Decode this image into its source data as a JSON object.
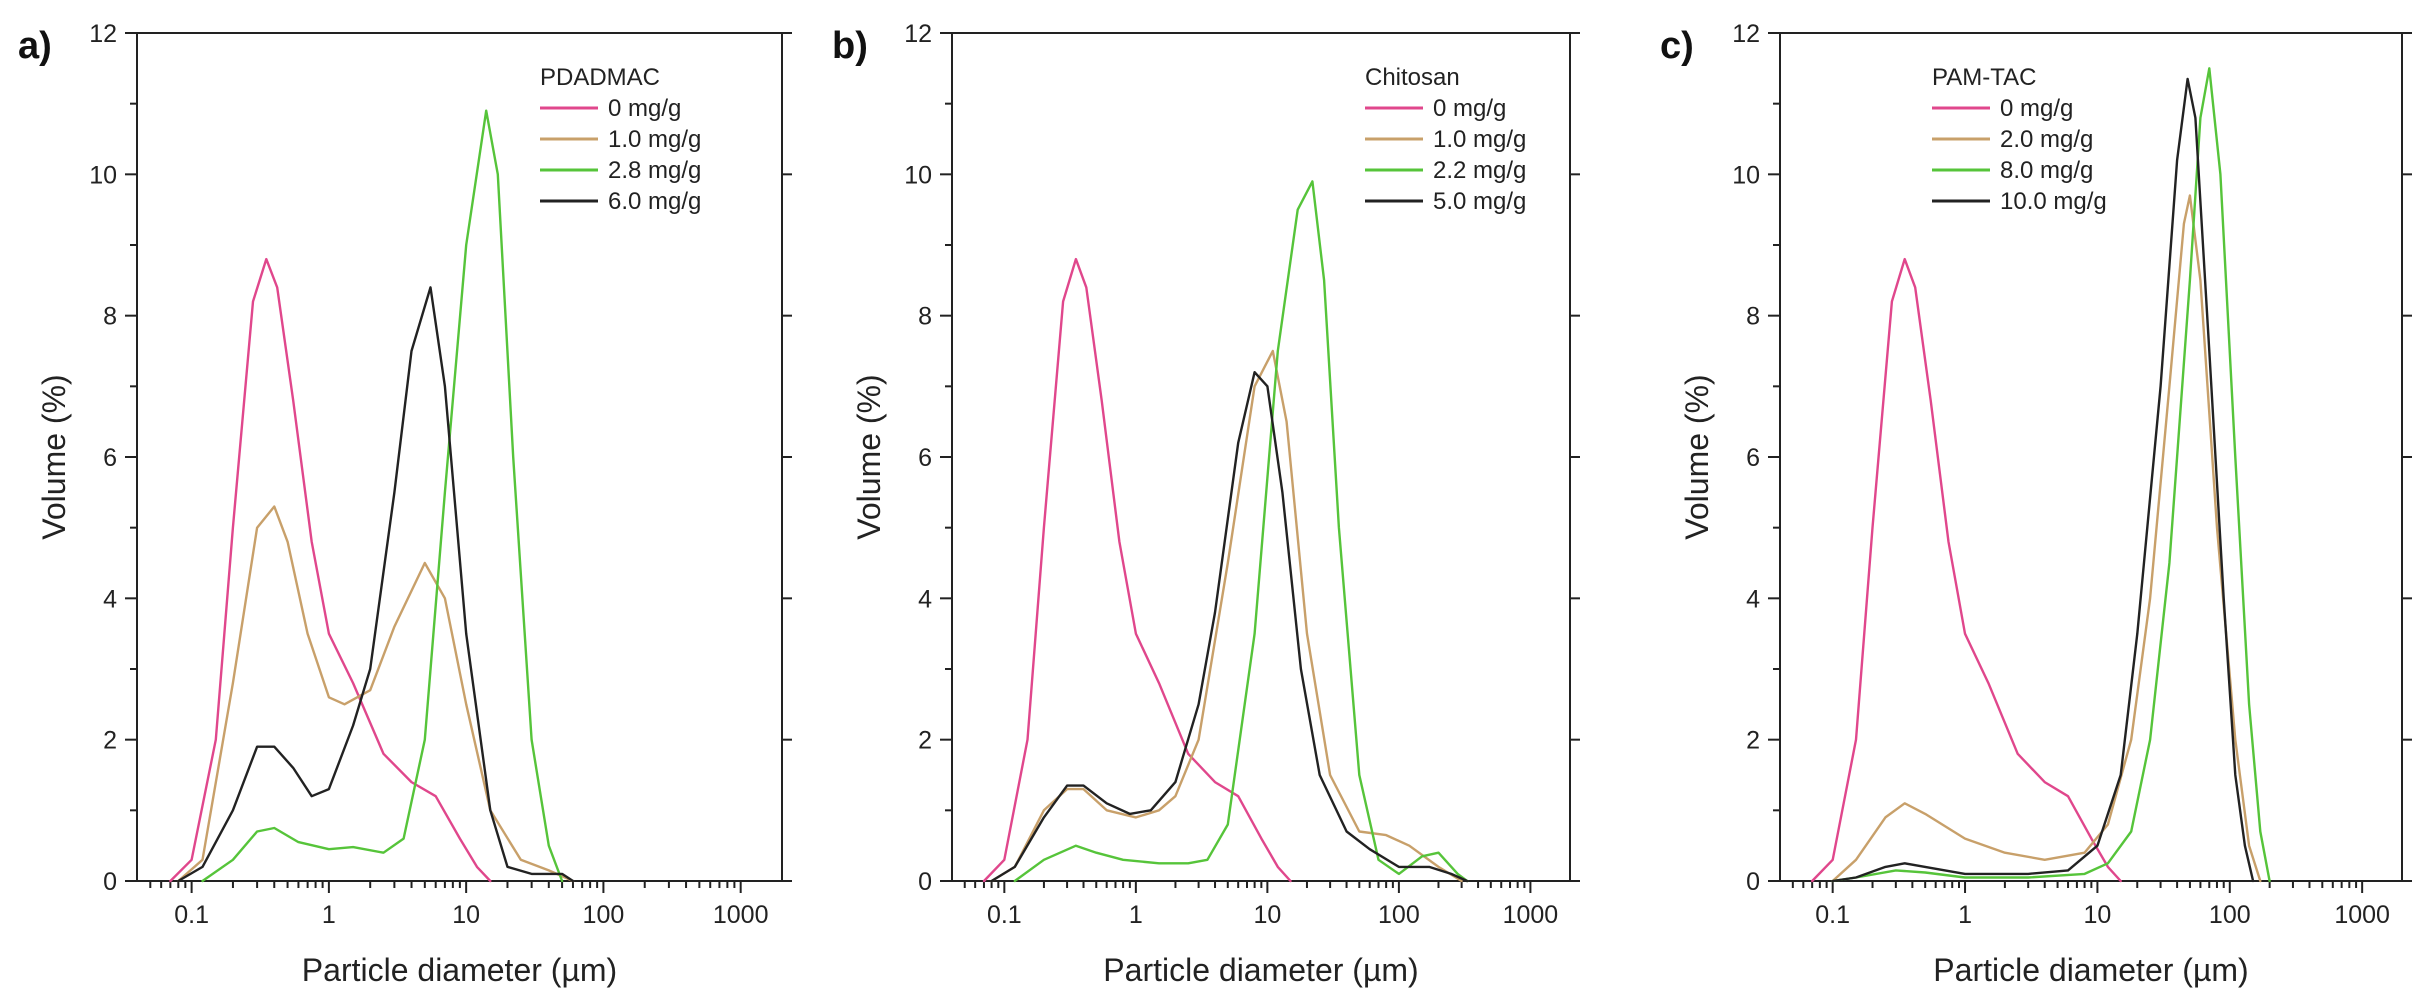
{
  "chart_data": [
    {
      "type": "line",
      "panel_label": "a)",
      "xlabel": "Particle diameter (µm)",
      "ylabel": "Volume (%)",
      "x_scale": "log",
      "xlim": [
        0.04,
        2000
      ],
      "ylim": [
        0,
        12
      ],
      "x_ticks": [
        0.1,
        1,
        10,
        100,
        1000
      ],
      "x_tick_labels": [
        "0.1",
        "1",
        "10",
        "100",
        "1000"
      ],
      "y_ticks": [
        0,
        2,
        4,
        6,
        8,
        10,
        12
      ],
      "legend_title": "PDADMAC",
      "legend_position": "top-right",
      "series": [
        {
          "name": "0 mg/g",
          "color": "#e0478c",
          "points": [
            [
              0.07,
              0
            ],
            [
              0.1,
              0.3
            ],
            [
              0.15,
              2.0
            ],
            [
              0.2,
              5.0
            ],
            [
              0.28,
              8.2
            ],
            [
              0.35,
              8.8
            ],
            [
              0.42,
              8.4
            ],
            [
              0.55,
              6.8
            ],
            [
              0.75,
              4.8
            ],
            [
              1,
              3.5
            ],
            [
              1.5,
              2.8
            ],
            [
              2.5,
              1.8
            ],
            [
              4,
              1.4
            ],
            [
              6,
              1.2
            ],
            [
              9,
              0.6
            ],
            [
              12,
              0.2
            ],
            [
              15,
              0
            ]
          ]
        },
        {
          "name": "1.0 mg/g",
          "color": "#c8a06a",
          "points": [
            [
              0.08,
              0
            ],
            [
              0.12,
              0.3
            ],
            [
              0.2,
              2.8
            ],
            [
              0.3,
              5.0
            ],
            [
              0.4,
              5.3
            ],
            [
              0.5,
              4.8
            ],
            [
              0.7,
              3.5
            ],
            [
              1,
              2.6
            ],
            [
              1.3,
              2.5
            ],
            [
              2,
              2.7
            ],
            [
              3,
              3.6
            ],
            [
              5,
              4.5
            ],
            [
              7,
              4.0
            ],
            [
              10,
              2.5
            ],
            [
              15,
              1.0
            ],
            [
              25,
              0.3
            ],
            [
              40,
              0.15
            ],
            [
              60,
              0
            ]
          ]
        },
        {
          "name": "2.8 mg/g",
          "color": "#56c43a",
          "points": [
            [
              0.12,
              0
            ],
            [
              0.2,
              0.3
            ],
            [
              0.3,
              0.7
            ],
            [
              0.4,
              0.75
            ],
            [
              0.6,
              0.55
            ],
            [
              1,
              0.45
            ],
            [
              1.5,
              0.48
            ],
            [
              2.5,
              0.4
            ],
            [
              3.5,
              0.6
            ],
            [
              5,
              2.0
            ],
            [
              7,
              5.5
            ],
            [
              10,
              9.0
            ],
            [
              14,
              10.9
            ],
            [
              17,
              10.0
            ],
            [
              22,
              6.0
            ],
            [
              30,
              2.0
            ],
            [
              40,
              0.5
            ],
            [
              50,
              0
            ]
          ]
        },
        {
          "name": "6.0 mg/g",
          "color": "#222222",
          "points": [
            [
              0.08,
              0
            ],
            [
              0.12,
              0.2
            ],
            [
              0.2,
              1.0
            ],
            [
              0.3,
              1.9
            ],
            [
              0.4,
              1.9
            ],
            [
              0.55,
              1.6
            ],
            [
              0.75,
              1.2
            ],
            [
              1,
              1.3
            ],
            [
              1.5,
              2.2
            ],
            [
              2,
              3.0
            ],
            [
              3,
              5.5
            ],
            [
              4,
              7.5
            ],
            [
              5.5,
              8.4
            ],
            [
              7,
              7.0
            ],
            [
              10,
              3.5
            ],
            [
              15,
              1.0
            ],
            [
              20,
              0.2
            ],
            [
              30,
              0.1
            ],
            [
              50,
              0.1
            ],
            [
              60,
              0
            ]
          ]
        }
      ]
    },
    {
      "type": "line",
      "panel_label": "b)",
      "xlabel": "Particle diameter (µm)",
      "ylabel": "Volume (%)",
      "x_scale": "log",
      "xlim": [
        0.04,
        2000
      ],
      "ylim": [
        0,
        12
      ],
      "x_ticks": [
        0.1,
        1,
        10,
        100,
        1000
      ],
      "x_tick_labels": [
        "0.1",
        "1",
        "10",
        "100",
        "1000"
      ],
      "y_ticks": [
        0,
        2,
        4,
        6,
        8,
        10,
        12
      ],
      "legend_title": "Chitosan",
      "legend_position": "top-right",
      "series": [
        {
          "name": "0 mg/g",
          "color": "#e0478c",
          "points": [
            [
              0.07,
              0
            ],
            [
              0.1,
              0.3
            ],
            [
              0.15,
              2.0
            ],
            [
              0.2,
              5.0
            ],
            [
              0.28,
              8.2
            ],
            [
              0.35,
              8.8
            ],
            [
              0.42,
              8.4
            ],
            [
              0.55,
              6.8
            ],
            [
              0.75,
              4.8
            ],
            [
              1,
              3.5
            ],
            [
              1.5,
              2.8
            ],
            [
              2.5,
              1.8
            ],
            [
              4,
              1.4
            ],
            [
              6,
              1.2
            ],
            [
              9,
              0.6
            ],
            [
              12,
              0.2
            ],
            [
              15,
              0
            ]
          ]
        },
        {
          "name": "1.0 mg/g",
          "color": "#c8a06a",
          "points": [
            [
              0.08,
              0
            ],
            [
              0.12,
              0.2
            ],
            [
              0.2,
              1.0
            ],
            [
              0.3,
              1.3
            ],
            [
              0.4,
              1.3
            ],
            [
              0.6,
              1.0
            ],
            [
              1,
              0.9
            ],
            [
              1.5,
              1.0
            ],
            [
              2,
              1.2
            ],
            [
              3,
              2.0
            ],
            [
              5,
              4.5
            ],
            [
              8,
              7.0
            ],
            [
              11,
              7.5
            ],
            [
              14,
              6.5
            ],
            [
              20,
              3.5
            ],
            [
              30,
              1.5
            ],
            [
              50,
              0.7
            ],
            [
              80,
              0.65
            ],
            [
              120,
              0.5
            ],
            [
              200,
              0.2
            ],
            [
              300,
              0
            ]
          ]
        },
        {
          "name": "2.2 mg/g",
          "color": "#56c43a",
          "points": [
            [
              0.12,
              0
            ],
            [
              0.2,
              0.3
            ],
            [
              0.35,
              0.5
            ],
            [
              0.5,
              0.4
            ],
            [
              0.8,
              0.3
            ],
            [
              1.5,
              0.25
            ],
            [
              2.5,
              0.25
            ],
            [
              3.5,
              0.3
            ],
            [
              5,
              0.8
            ],
            [
              8,
              3.5
            ],
            [
              12,
              7.5
            ],
            [
              17,
              9.5
            ],
            [
              22,
              9.9
            ],
            [
              27,
              8.5
            ],
            [
              35,
              5.0
            ],
            [
              50,
              1.5
            ],
            [
              70,
              0.3
            ],
            [
              100,
              0.1
            ],
            [
              150,
              0.35
            ],
            [
              200,
              0.4
            ],
            [
              280,
              0.1
            ],
            [
              330,
              0
            ]
          ]
        },
        {
          "name": "5.0 mg/g",
          "color": "#222222",
          "points": [
            [
              0.08,
              0
            ],
            [
              0.12,
              0.2
            ],
            [
              0.2,
              0.9
            ],
            [
              0.3,
              1.35
            ],
            [
              0.4,
              1.35
            ],
            [
              0.6,
              1.1
            ],
            [
              0.9,
              0.95
            ],
            [
              1.3,
              1.0
            ],
            [
              2,
              1.4
            ],
            [
              3,
              2.5
            ],
            [
              4,
              3.8
            ],
            [
              6,
              6.2
            ],
            [
              8,
              7.2
            ],
            [
              10,
              7.0
            ],
            [
              13,
              5.5
            ],
            [
              18,
              3.0
            ],
            [
              25,
              1.5
            ],
            [
              40,
              0.7
            ],
            [
              60,
              0.45
            ],
            [
              100,
              0.2
            ],
            [
              170,
              0.2
            ],
            [
              250,
              0.1
            ],
            [
              330,
              0
            ]
          ]
        }
      ]
    },
    {
      "type": "line",
      "panel_label": "c)",
      "xlabel": "Particle diameter (µm)",
      "ylabel": "Volume (%)",
      "x_scale": "log",
      "xlim": [
        0.04,
        2000
      ],
      "ylim": [
        0,
        12
      ],
      "x_ticks": [
        0.1,
        1,
        10,
        100,
        1000
      ],
      "x_tick_labels": [
        "0.1",
        "1",
        "10",
        "100",
        "1000"
      ],
      "y_ticks": [
        0,
        2,
        4,
        6,
        8,
        10,
        12
      ],
      "legend_title": "PAM-TAC",
      "legend_position": "top-left",
      "series": [
        {
          "name": "0 mg/g",
          "color": "#e0478c",
          "points": [
            [
              0.07,
              0
            ],
            [
              0.1,
              0.3
            ],
            [
              0.15,
              2.0
            ],
            [
              0.2,
              5.0
            ],
            [
              0.28,
              8.2
            ],
            [
              0.35,
              8.8
            ],
            [
              0.42,
              8.4
            ],
            [
              0.55,
              6.8
            ],
            [
              0.75,
              4.8
            ],
            [
              1,
              3.5
            ],
            [
              1.5,
              2.8
            ],
            [
              2.5,
              1.8
            ],
            [
              4,
              1.4
            ],
            [
              6,
              1.2
            ],
            [
              9,
              0.6
            ],
            [
              12,
              0.2
            ],
            [
              15,
              0
            ]
          ]
        },
        {
          "name": "2.0 mg/g",
          "color": "#c8a06a",
          "points": [
            [
              0.1,
              0
            ],
            [
              0.15,
              0.3
            ],
            [
              0.25,
              0.9
            ],
            [
              0.35,
              1.1
            ],
            [
              0.5,
              0.95
            ],
            [
              1,
              0.6
            ],
            [
              2,
              0.4
            ],
            [
              4,
              0.3
            ],
            [
              8,
              0.4
            ],
            [
              12,
              0.8
            ],
            [
              18,
              2.0
            ],
            [
              25,
              4.0
            ],
            [
              35,
              7.0
            ],
            [
              45,
              9.3
            ],
            [
              50,
              9.7
            ],
            [
              60,
              8.5
            ],
            [
              80,
              5.0
            ],
            [
              110,
              2.0
            ],
            [
              140,
              0.5
            ],
            [
              170,
              0
            ]
          ]
        },
        {
          "name": "8.0 mg/g",
          "color": "#56c43a",
          "points": [
            [
              0.1,
              0
            ],
            [
              0.15,
              0.05
            ],
            [
              0.3,
              0.15
            ],
            [
              0.5,
              0.12
            ],
            [
              1,
              0.05
            ],
            [
              3,
              0.05
            ],
            [
              8,
              0.1
            ],
            [
              12,
              0.25
            ],
            [
              18,
              0.7
            ],
            [
              25,
              2.0
            ],
            [
              35,
              4.5
            ],
            [
              50,
              8.5
            ],
            [
              60,
              10.8
            ],
            [
              70,
              11.5
            ],
            [
              85,
              10.0
            ],
            [
              110,
              6.0
            ],
            [
              140,
              2.5
            ],
            [
              170,
              0.7
            ],
            [
              200,
              0
            ]
          ]
        },
        {
          "name": "10.0 mg/g",
          "color": "#222222",
          "points": [
            [
              0.1,
              0
            ],
            [
              0.15,
              0.05
            ],
            [
              0.25,
              0.2
            ],
            [
              0.35,
              0.25
            ],
            [
              0.5,
              0.2
            ],
            [
              1,
              0.1
            ],
            [
              3,
              0.1
            ],
            [
              6,
              0.15
            ],
            [
              10,
              0.5
            ],
            [
              15,
              1.5
            ],
            [
              20,
              3.5
            ],
            [
              30,
              7.0
            ],
            [
              40,
              10.2
            ],
            [
              48,
              11.35
            ],
            [
              55,
              10.8
            ],
            [
              70,
              7.5
            ],
            [
              90,
              4.0
            ],
            [
              110,
              1.5
            ],
            [
              130,
              0.5
            ],
            [
              150,
              0
            ]
          ]
        }
      ]
    }
  ]
}
